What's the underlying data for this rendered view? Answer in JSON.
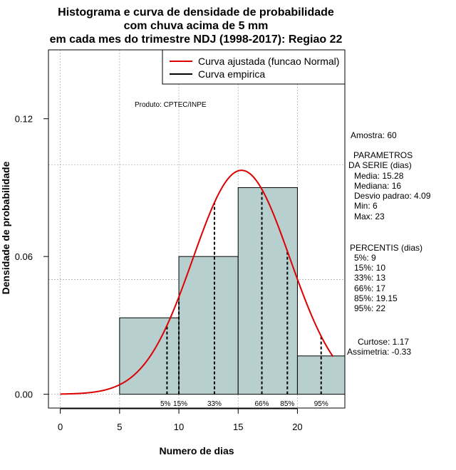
{
  "chart_data": {
    "type": "histogram",
    "title": [
      "Histograma e curva de densidade de probabilidade",
      "com chuva acima de 5 mm",
      "em cada mes do trimestre NDJ (1998-2017): Regiao 22"
    ],
    "xlabel": "Numero de dias",
    "ylabel": "Densidade de probabilidade",
    "xlim": [
      -1,
      24
    ],
    "ylim": [
      -0.006,
      0.15
    ],
    "xticks": [
      0,
      5,
      10,
      15,
      20
    ],
    "yticks": [
      0.0,
      0.06,
      0.12
    ],
    "ytick_labels": [
      "0.00",
      "0.06",
      "0.12"
    ],
    "grid_x": [
      0,
      5,
      10,
      15,
      20
    ],
    "grid_y": [
      0.0,
      0.05,
      0.1,
      0.15
    ],
    "bars": [
      {
        "x0": 5,
        "x1": 10,
        "value": 0.0333
      },
      {
        "x0": 10,
        "x1": 15,
        "value": 0.06
      },
      {
        "x0": 15,
        "x1": 20,
        "value": 0.09
      },
      {
        "x0": 20,
        "x1": 24,
        "value": 0.0167
      }
    ],
    "bar_color": "#b8cfcf",
    "fit_curve": {
      "name": "Curva ajustada (funcao Normal)",
      "distribution": "normal",
      "mean": 15.28,
      "sd": 4.09,
      "x_range": [
        0,
        23
      ],
      "color": "#dd0000"
    },
    "empirical_curve": {
      "name": "Curva empirica",
      "color": "#000000"
    },
    "percentile_lines": [
      {
        "label": "5%",
        "x": 9
      },
      {
        "label": "15%",
        "x": 10
      },
      {
        "label": "33%",
        "x": 13
      },
      {
        "label": "66%",
        "x": 17
      },
      {
        "label": "85%",
        "x": 19.15
      },
      {
        "label": "95%",
        "x": 22
      }
    ],
    "legend": {
      "position": "top-right",
      "entries": [
        "Curva ajustada (funcao Normal)",
        "Curva empirica"
      ]
    },
    "producer_note": "Produto: CPTEC/INPE",
    "stats": {
      "amostra": "Amostra: 60",
      "param_header_1": "PARAMETROS",
      "param_header_2": "DA SERIE (dias)",
      "media": "Media: 15.28",
      "mediana": "Mediana: 16",
      "desvio": "Desvio padrao: 4.09",
      "min": "Min: 6",
      "max": "Max: 23",
      "percentis_header": "PERCENTIS (dias)",
      "p5": "5%: 9",
      "p15": "15%: 10",
      "p33": "33%: 13",
      "p66": "66%: 17",
      "p85": "85%: 19.15",
      "p95": "95%: 22",
      "curtose": "Curtose: 1.17",
      "assimetria": "Assimetria: -0.33"
    }
  }
}
